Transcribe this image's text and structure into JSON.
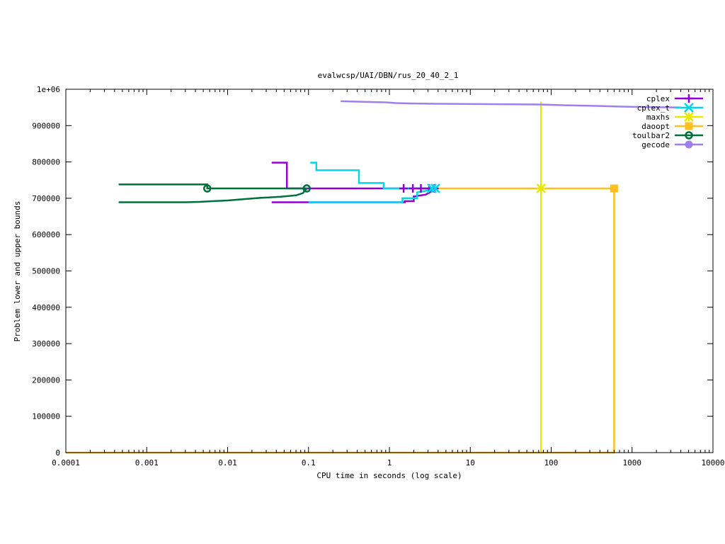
{
  "chart_data": {
    "type": "line",
    "title": "evalwcsp/UAI/DBN/rus_20_40_2_1",
    "xlabel": "CPU time in seconds (log scale)",
    "ylabel": "Problem lower and upper bounds",
    "xscale": "log",
    "xlim": [
      0.0001,
      10000
    ],
    "ylim": [
      0,
      1000000
    ],
    "x_ticks": [
      {
        "value": 0.0001,
        "label": "0.0001"
      },
      {
        "value": 0.001,
        "label": "0.001"
      },
      {
        "value": 0.01,
        "label": "0.01"
      },
      {
        "value": 0.1,
        "label": "0.1"
      },
      {
        "value": 1,
        "label": "1"
      },
      {
        "value": 10,
        "label": "10"
      },
      {
        "value": 100,
        "label": "100"
      },
      {
        "value": 1000,
        "label": "1000"
      },
      {
        "value": 10000,
        "label": "10000"
      }
    ],
    "y_ticks": [
      {
        "value": 0,
        "label": "0"
      },
      {
        "value": 100000,
        "label": "100000"
      },
      {
        "value": 200000,
        "label": "200000"
      },
      {
        "value": 300000,
        "label": "300000"
      },
      {
        "value": 400000,
        "label": "400000"
      },
      {
        "value": 500000,
        "label": "500000"
      },
      {
        "value": 600000,
        "label": "600000"
      },
      {
        "value": 700000,
        "label": "700000"
      },
      {
        "value": 800000,
        "label": "800000"
      },
      {
        "value": 900000,
        "label": "900000"
      },
      {
        "value": 1000000,
        "label": "1e+06"
      }
    ],
    "grid": false,
    "legend_position": "top-right",
    "series": [
      {
        "name": "cplex",
        "color": "#9400d3",
        "marker": "plus",
        "lines": [
          {
            "role": "upper",
            "points": [
              [
                0.035,
                798000
              ],
              [
                0.054,
                798000
              ],
              [
                0.054,
                727000
              ],
              [
                3.9,
                727000
              ]
            ]
          },
          {
            "role": "lower",
            "points": [
              [
                0.035,
                689000
              ],
              [
                0.1,
                689000
              ],
              [
                1.55,
                689000
              ],
              [
                1.55,
                692000
              ],
              [
                2.0,
                692000
              ],
              [
                2.0,
                705000
              ],
              [
                2.8,
                710000
              ],
              [
                3.9,
                727000
              ]
            ]
          }
        ],
        "markers": [
          [
            1.5,
            727000
          ],
          [
            1.95,
            727000
          ],
          [
            2.45,
            727000
          ],
          [
            3.1,
            727000
          ],
          [
            3.6,
            727000
          ]
        ]
      },
      {
        "name": "cplex_t",
        "color": "#00d8e8",
        "marker": "x",
        "lines": [
          {
            "role": "upper",
            "points": [
              [
                0.105,
                798000
              ],
              [
                0.125,
                798000
              ],
              [
                0.125,
                777000
              ],
              [
                0.42,
                777000
              ],
              [
                0.42,
                742000
              ],
              [
                0.85,
                742000
              ],
              [
                0.85,
                727000
              ],
              [
                3.6,
                727000
              ]
            ]
          },
          {
            "role": "lower",
            "points": [
              [
                0.1,
                689000
              ],
              [
                1.45,
                689000
              ],
              [
                1.45,
                700000
              ],
              [
                2.2,
                700000
              ],
              [
                2.2,
                716000
              ],
              [
                3.6,
                725000
              ]
            ]
          }
        ],
        "markers": [
          [
            3.35,
            727000
          ],
          [
            3.7,
            727000
          ]
        ]
      },
      {
        "name": "maxhs",
        "color": "#e8e800",
        "marker": "star",
        "lines": [
          {
            "role": "upper",
            "points": [
              [
                75,
                966000
              ],
              [
                75,
                727000
              ]
            ]
          },
          {
            "role": "lower",
            "points": [
              [
                75,
                727000
              ],
              [
                75,
                0
              ]
            ]
          }
        ],
        "markers": [
          [
            75,
            727000
          ]
        ]
      },
      {
        "name": "daoopt",
        "color": "#ffbf1f",
        "marker": "square",
        "lines": [
          {
            "role": "upper",
            "points": [
              [
                3.9,
                727000
              ],
              [
                600,
                727000
              ]
            ]
          },
          {
            "role": "lower",
            "points": [
              [
                0.0001,
                0
              ],
              [
                600,
                0
              ],
              [
                600,
                727000
              ]
            ]
          }
        ],
        "markers": [
          [
            600,
            727000
          ]
        ]
      },
      {
        "name": "toulbar2",
        "color": "#00703c",
        "marker": "circle-open",
        "lines": [
          {
            "role": "upper",
            "points": [
              [
                0.00045,
                738000
              ],
              [
                0.0056,
                738000
              ],
              [
                0.0056,
                727000
              ],
              [
                0.095,
                727000
              ]
            ]
          },
          {
            "role": "lower",
            "points": [
              [
                0.00045,
                689000
              ],
              [
                0.003,
                689000
              ],
              [
                0.0045,
                690000
              ],
              [
                0.0065,
                692000
              ],
              [
                0.01,
                694000
              ],
              [
                0.015,
                697000
              ],
              [
                0.025,
                701000
              ],
              [
                0.045,
                704000
              ],
              [
                0.07,
                708000
              ],
              [
                0.085,
                714000
              ],
              [
                0.095,
                727000
              ]
            ]
          }
        ],
        "markers": [
          [
            0.0056,
            727000
          ],
          [
            0.095,
            727000
          ]
        ]
      },
      {
        "name": "gecode",
        "color": "#9f7fef",
        "marker": "circle-filled",
        "lines": [
          {
            "role": "upper",
            "points": [
              [
                0.25,
                967000
              ],
              [
                0.9,
                964000
              ],
              [
                1.2,
                962000
              ],
              [
                1.8,
                961000
              ],
              [
                3.5,
                960000
              ],
              [
                70,
                958000
              ],
              [
                150,
                956000
              ],
              [
                400,
                954000
              ],
              [
                800,
                952000
              ],
              [
                1600,
                951000
              ],
              [
                4000,
                950000
              ]
            ]
          }
        ],
        "markers": []
      }
    ]
  }
}
